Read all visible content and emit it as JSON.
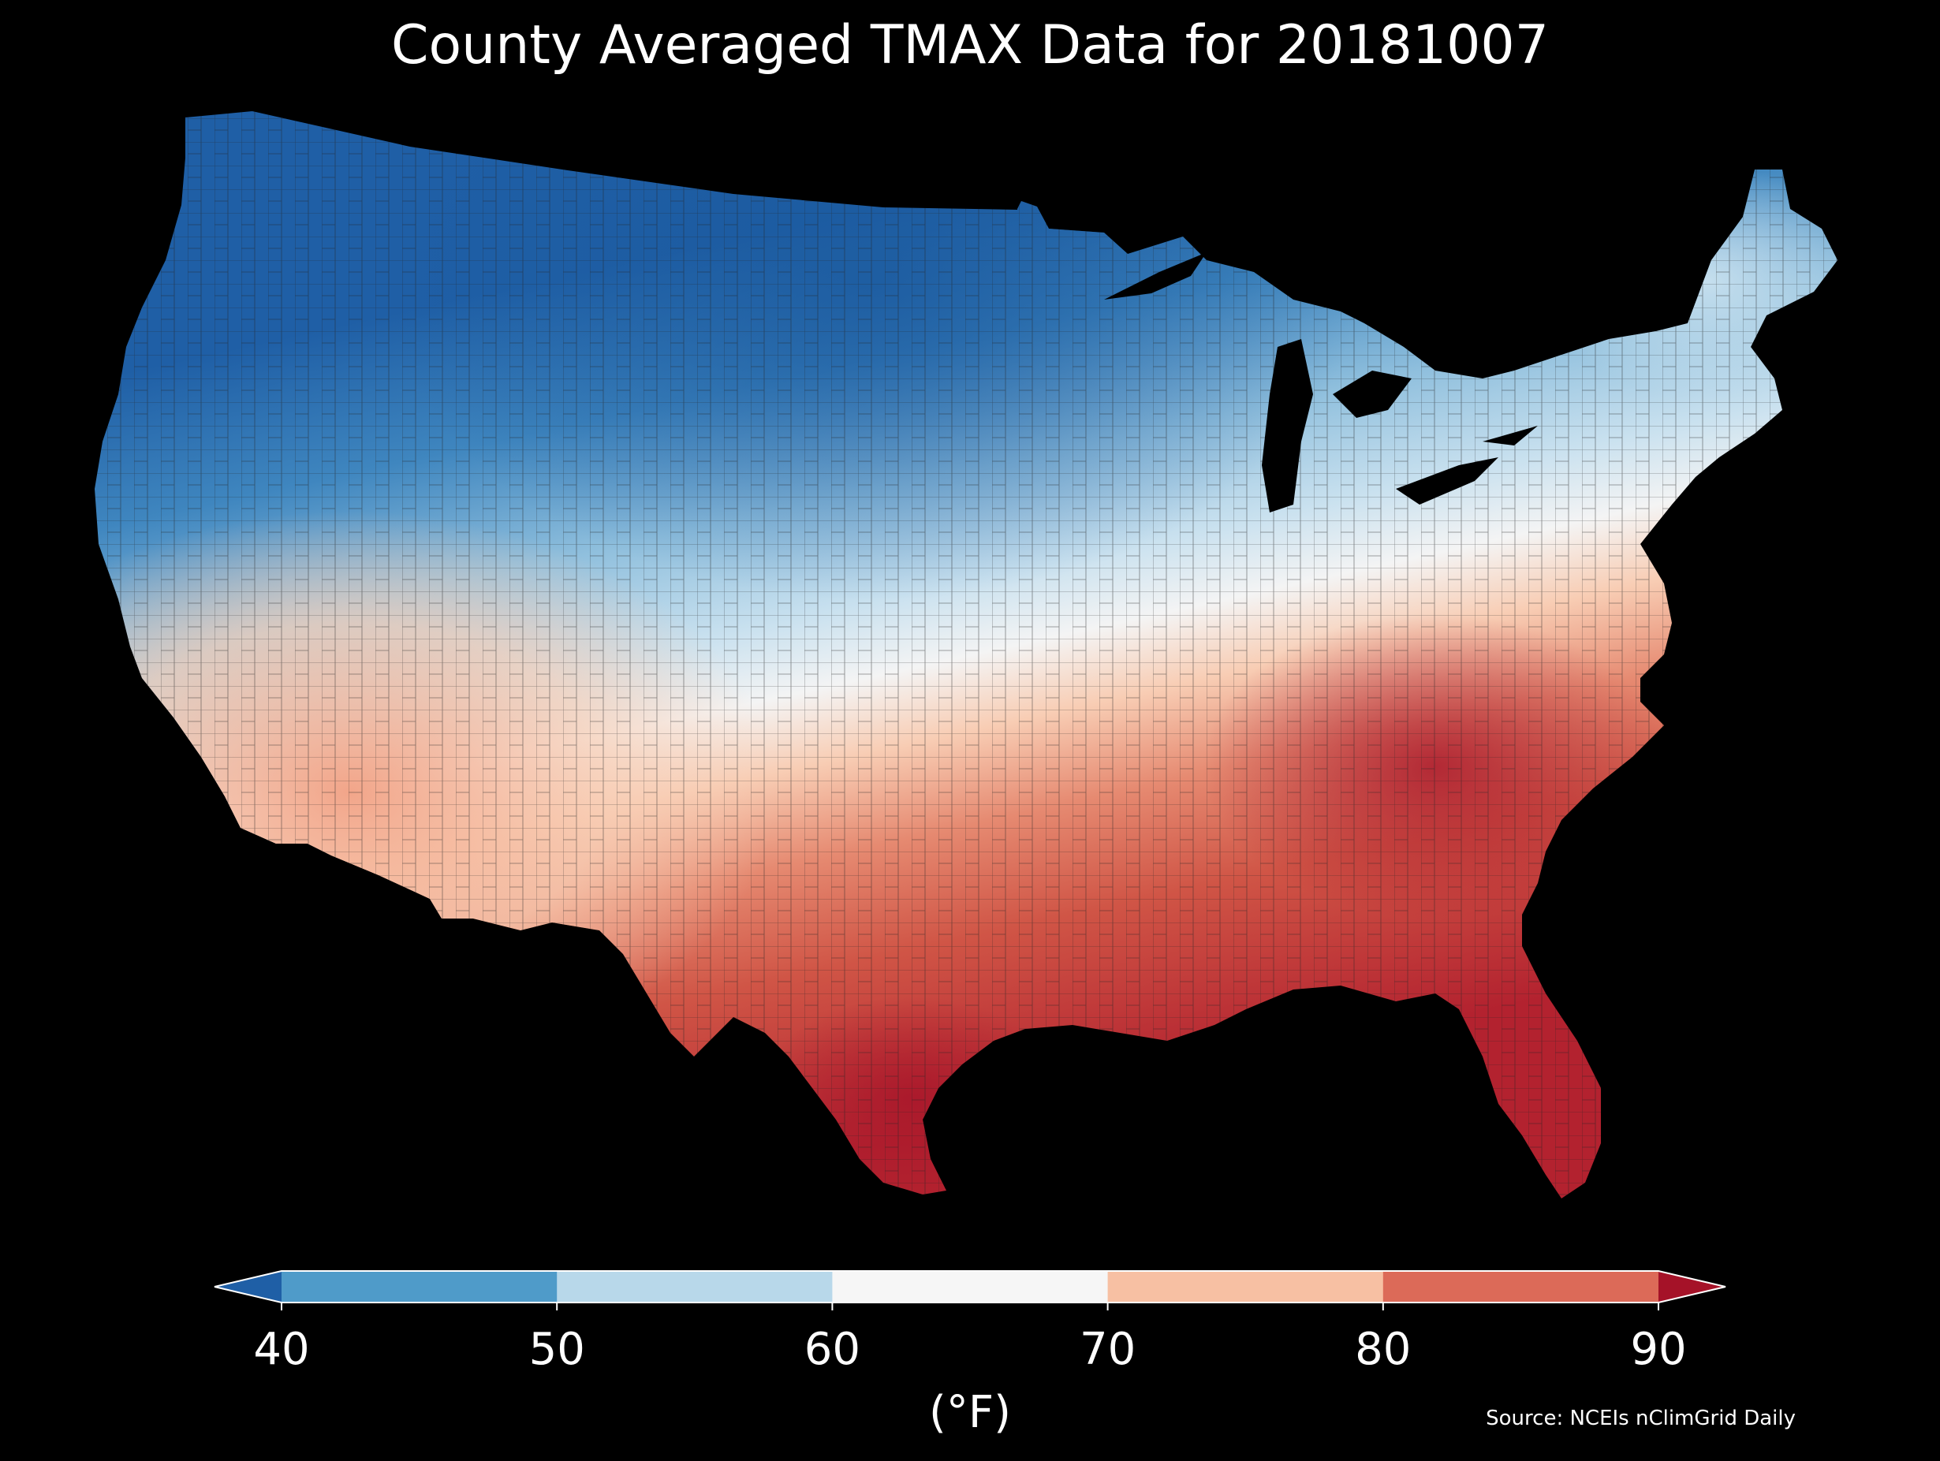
{
  "title": "County Averaged TMAX Data for 20181007",
  "source": "Source: NCEIs nClimGrid Daily",
  "colorbar": {
    "label": "(°F)",
    "ticks": [
      "40",
      "50",
      "60",
      "70",
      "80",
      "90"
    ],
    "bins": [
      {
        "range": "<40",
        "color": "#1f5fa6"
      },
      {
        "range": "40-50",
        "color": "#4f9bc9"
      },
      {
        "range": "50-60",
        "color": "#b8d8ea"
      },
      {
        "range": "60-70",
        "color": "#f6f6f6"
      },
      {
        "range": "70-80",
        "color": "#f7c0a3"
      },
      {
        "range": "80-90",
        "color": "#dc6a58"
      },
      {
        "range": ">90",
        "color": "#a51228"
      }
    ],
    "extend": "both"
  },
  "map": {
    "region": "Contiguous United States",
    "unit": "°F",
    "pattern": "cool north and northern Rockies/Plains (40-60°F), warm south and southeast (70-90°F)"
  }
}
